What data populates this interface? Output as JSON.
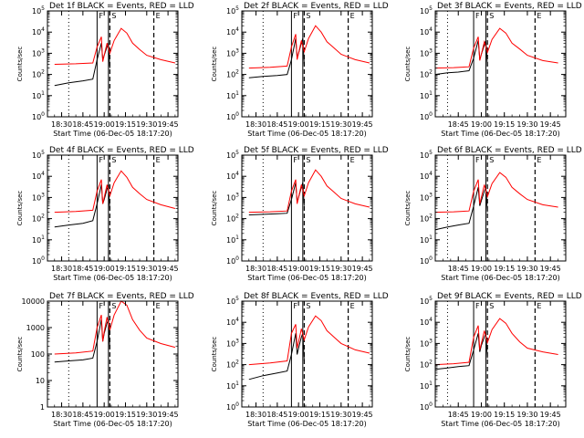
{
  "colors": {
    "events": "#000000",
    "lld": "#ff0000",
    "axis": "#000000",
    "background": "#ffffff"
  },
  "common": {
    "ylabel": "Counts/sec",
    "xlabel": "Start Time (06-Dec-05 18:17:20)",
    "xticks": [
      "18:30",
      "18:45",
      "19:00",
      "19:15",
      "19:30",
      "19:45"
    ],
    "xticks_start_1845": [
      "18:45",
      "19:00",
      "19:15",
      "19:30",
      "19:45"
    ],
    "marker_labels": [
      "F",
      "S",
      "E"
    ]
  },
  "chart_data": [
    {
      "type": "line",
      "title": "Det 1f BLACK = Events, RED = LLD",
      "xlim": [
        "18:20",
        "19:52"
      ],
      "xticks": [
        "18:30",
        "18:45",
        "19:00",
        "19:15",
        "19:30",
        "19:45"
      ],
      "yscale": "log",
      "ylim": [
        1,
        100000
      ],
      "yticks": [
        "10^0",
        "10^1",
        "10^2",
        "10^3",
        "10^4",
        "10^5"
      ],
      "dotted_line": "18:35",
      "solid_lines": [
        "18:55",
        "19:03"
      ],
      "dashed_lines": [
        "19:04",
        "19:35"
      ],
      "series": [
        {
          "name": "BLACK = Events",
          "color": "#000000",
          "x": [
            "18:25",
            "18:35",
            "18:45",
            "18:52",
            "18:55",
            "18:58",
            "18:59",
            "19:00",
            "19:02",
            "19:03",
            "19:04"
          ],
          "y": [
            30,
            40,
            50,
            60,
            500,
            3000,
            500,
            800,
            2000,
            3000,
            200
          ]
        },
        {
          "name": "RED = LLD",
          "color": "#ff0000",
          "x": [
            "18:25",
            "18:40",
            "18:52",
            "18:55",
            "18:58",
            "18:59",
            "19:00",
            "19:02",
            "19:04",
            "19:07",
            "19:12",
            "19:16",
            "19:20",
            "19:25",
            "19:30",
            "19:40",
            "19:50"
          ],
          "y": [
            300,
            320,
            350,
            2000,
            6000,
            400,
            800,
            3000,
            1000,
            4000,
            15000,
            9000,
            3000,
            1500,
            800,
            500,
            350
          ]
        }
      ]
    },
    {
      "type": "line",
      "title": "Det 2f BLACK = Events, RED = LLD",
      "xlim": [
        "18:20",
        "19:52"
      ],
      "xticks": [
        "18:30",
        "18:45",
        "19:00",
        "19:15",
        "19:30",
        "19:45"
      ],
      "yscale": "log",
      "ylim": [
        1,
        100000
      ],
      "yticks": [
        "10^0",
        "10^1",
        "10^2",
        "10^3",
        "10^4",
        "10^5"
      ],
      "dotted_line": "18:35",
      "solid_lines": [
        "18:55",
        "19:03"
      ],
      "dashed_lines": [
        "19:04",
        "19:35"
      ],
      "series": [
        {
          "name": "BLACK = Events",
          "color": "#000000",
          "x": [
            "18:25",
            "18:35",
            "18:45",
            "18:52",
            "18:55",
            "18:58",
            "18:59",
            "19:00",
            "19:02",
            "19:03",
            "19:04"
          ],
          "y": [
            70,
            80,
            90,
            100,
            500,
            5000,
            600,
            1000,
            3000,
            5000,
            300
          ]
        },
        {
          "name": "RED = LLD",
          "color": "#ff0000",
          "x": [
            "18:25",
            "18:40",
            "18:52",
            "18:55",
            "18:58",
            "18:59",
            "19:00",
            "19:02",
            "19:04",
            "19:07",
            "19:12",
            "19:16",
            "19:20",
            "19:25",
            "19:30",
            "19:40",
            "19:50"
          ],
          "y": [
            200,
            220,
            250,
            2000,
            8000,
            500,
            1000,
            4000,
            1200,
            5000,
            20000,
            10000,
            3500,
            1800,
            900,
            500,
            350
          ]
        }
      ]
    },
    {
      "type": "line",
      "title": "Det 3f BLACK = Events, RED = LLD",
      "xlim": [
        "18:30",
        "19:55"
      ],
      "xticks": [
        "18:45",
        "19:00",
        "19:15",
        "19:30",
        "19:45"
      ],
      "yscale": "log",
      "ylim": [
        1,
        100000
      ],
      "yticks": [
        "10^0",
        "10^1",
        "10^2",
        "10^3",
        "10^4",
        "10^5"
      ],
      "dotted_line": "18:38",
      "solid_lines": [
        "18:55",
        "19:03"
      ],
      "dashed_lines": [
        "19:04",
        "19:35"
      ],
      "series": [
        {
          "name": "BLACK = Events",
          "color": "#000000",
          "x": [
            "18:30",
            "18:38",
            "18:45",
            "18:52",
            "18:55",
            "18:58",
            "18:59",
            "19:00",
            "19:02",
            "19:03",
            "19:04"
          ],
          "y": [
            100,
            120,
            130,
            150,
            600,
            4000,
            500,
            900,
            2500,
            4000,
            250
          ]
        },
        {
          "name": "RED = LLD",
          "color": "#ff0000",
          "x": [
            "18:30",
            "18:42",
            "18:52",
            "18:55",
            "18:58",
            "18:59",
            "19:00",
            "19:02",
            "19:04",
            "19:07",
            "19:12",
            "19:16",
            "19:20",
            "19:25",
            "19:30",
            "19:40",
            "19:50"
          ],
          "y": [
            200,
            210,
            230,
            1800,
            6000,
            450,
            900,
            3500,
            1100,
            4500,
            15000,
            9000,
            3000,
            1600,
            800,
            450,
            350
          ]
        }
      ]
    },
    {
      "type": "line",
      "title": "Det 4f BLACK = Events, RED = LLD",
      "xlim": [
        "18:20",
        "19:52"
      ],
      "xticks": [
        "18:30",
        "18:45",
        "19:00",
        "19:15",
        "19:30",
        "19:45"
      ],
      "yscale": "log",
      "ylim": [
        1,
        100000
      ],
      "yticks": [
        "10^0",
        "10^1",
        "10^2",
        "10^3",
        "10^4",
        "10^5"
      ],
      "dotted_line": "18:35",
      "solid_lines": [
        "18:55",
        "19:03"
      ],
      "dashed_lines": [
        "19:04",
        "19:35"
      ],
      "series": [
        {
          "name": "BLACK = Events",
          "color": "#000000",
          "x": [
            "18:25",
            "18:35",
            "18:45",
            "18:52",
            "18:55",
            "18:58",
            "18:59",
            "19:00",
            "19:02",
            "19:03",
            "19:04"
          ],
          "y": [
            40,
            50,
            60,
            80,
            500,
            4000,
            500,
            800,
            2500,
            4000,
            250
          ]
        },
        {
          "name": "RED = LLD",
          "color": "#ff0000",
          "x": [
            "18:25",
            "18:40",
            "18:52",
            "18:55",
            "18:58",
            "18:59",
            "19:00",
            "19:02",
            "19:04",
            "19:07",
            "19:12",
            "19:16",
            "19:20",
            "19:25",
            "19:30",
            "19:40",
            "19:50"
          ],
          "y": [
            200,
            220,
            250,
            2000,
            7000,
            500,
            1000,
            4000,
            1200,
            5000,
            18000,
            9000,
            3000,
            1500,
            800,
            450,
            300
          ]
        }
      ]
    },
    {
      "type": "line",
      "title": "Det 5f BLACK = Events, RED = LLD",
      "xlim": [
        "18:20",
        "19:52"
      ],
      "xticks": [
        "18:30",
        "18:45",
        "19:00",
        "19:15",
        "19:30",
        "19:45"
      ],
      "yscale": "log",
      "ylim": [
        1,
        100000
      ],
      "yticks": [
        "10^0",
        "10^1",
        "10^2",
        "10^3",
        "10^4",
        "10^5"
      ],
      "dotted_line": "18:35",
      "solid_lines": [
        "18:55",
        "19:03"
      ],
      "dashed_lines": [
        "19:04",
        "19:35"
      ],
      "series": [
        {
          "name": "BLACK = Events",
          "color": "#000000",
          "x": [
            "18:25",
            "18:35",
            "18:45",
            "18:52",
            "18:55",
            "18:58",
            "18:59",
            "19:00",
            "19:02",
            "19:03",
            "19:04"
          ],
          "y": [
            150,
            160,
            170,
            180,
            800,
            5000,
            600,
            1000,
            3000,
            5000,
            400
          ]
        },
        {
          "name": "RED = LLD",
          "color": "#ff0000",
          "x": [
            "18:25",
            "18:40",
            "18:52",
            "18:55",
            "18:58",
            "18:59",
            "19:00",
            "19:02",
            "19:04",
            "19:07",
            "19:12",
            "19:16",
            "19:20",
            "19:25",
            "19:30",
            "19:40",
            "19:50"
          ],
          "y": [
            200,
            210,
            230,
            2000,
            7000,
            500,
            1000,
            4000,
            1200,
            5000,
            20000,
            10000,
            3500,
            1800,
            900,
            500,
            350
          ]
        }
      ]
    },
    {
      "type": "line",
      "title": "Det 6f BLACK = Events, RED = LLD",
      "xlim": [
        "18:30",
        "19:55"
      ],
      "xticks": [
        "18:45",
        "19:00",
        "19:15",
        "19:30",
        "19:45"
      ],
      "yscale": "log",
      "ylim": [
        1,
        100000
      ],
      "yticks": [
        "10^0",
        "10^1",
        "10^2",
        "10^3",
        "10^4",
        "10^5"
      ],
      "dotted_line": "18:38",
      "solid_lines": [
        "18:55",
        "19:03"
      ],
      "dashed_lines": [
        "19:04",
        "19:35"
      ],
      "series": [
        {
          "name": "BLACK = Events",
          "color": "#000000",
          "x": [
            "18:30",
            "18:38",
            "18:45",
            "18:52",
            "18:55",
            "18:58",
            "18:59",
            "19:00",
            "19:02",
            "19:03",
            "19:04"
          ],
          "y": [
            30,
            40,
            50,
            60,
            400,
            3000,
            400,
            700,
            2000,
            3000,
            200
          ]
        },
        {
          "name": "RED = LLD",
          "color": "#ff0000",
          "x": [
            "18:30",
            "18:42",
            "18:52",
            "18:55",
            "18:58",
            "18:59",
            "19:00",
            "19:02",
            "19:04",
            "19:07",
            "19:12",
            "19:16",
            "19:20",
            "19:25",
            "19:30",
            "19:40",
            "19:50"
          ],
          "y": [
            200,
            210,
            230,
            2000,
            7000,
            500,
            1000,
            4000,
            1100,
            4500,
            15000,
            9000,
            3000,
            1500,
            800,
            450,
            350
          ]
        }
      ]
    },
    {
      "type": "line",
      "title": "Det 7f BLACK = Events, RED = LLD",
      "xlim": [
        "18:20",
        "19:52"
      ],
      "xticks": [
        "18:30",
        "18:45",
        "19:00",
        "19:15",
        "19:30",
        "19:45"
      ],
      "yscale": "log",
      "ylim": [
        1,
        10000
      ],
      "yticks": [
        "1",
        "10",
        "100",
        "1000",
        "10000"
      ],
      "dotted_line": "18:35",
      "solid_lines": [
        "18:55",
        "19:03"
      ],
      "dashed_lines": [
        "19:04",
        "19:35"
      ],
      "series": [
        {
          "name": "BLACK = Events",
          "color": "#000000",
          "x": [
            "18:25",
            "18:35",
            "18:45",
            "18:52",
            "18:55",
            "18:58",
            "18:59",
            "19:00",
            "19:02",
            "19:03",
            "19:04"
          ],
          "y": [
            50,
            55,
            60,
            70,
            300,
            2000,
            300,
            600,
            1500,
            2000,
            150
          ]
        },
        {
          "name": "RED = LLD",
          "color": "#ff0000",
          "x": [
            "18:25",
            "18:40",
            "18:52",
            "18:55",
            "18:58",
            "18:59",
            "19:00",
            "19:02",
            "19:04",
            "19:07",
            "19:12",
            "19:16",
            "19:20",
            "19:25",
            "19:30",
            "19:40",
            "19:50"
          ],
          "y": [
            100,
            110,
            130,
            1000,
            3000,
            300,
            700,
            2500,
            800,
            3000,
            10000,
            7000,
            2000,
            800,
            400,
            250,
            180
          ]
        }
      ]
    },
    {
      "type": "line",
      "title": "Det 8f BLACK = Events, RED = LLD",
      "xlim": [
        "18:20",
        "19:52"
      ],
      "xticks": [
        "18:30",
        "18:45",
        "19:00",
        "19:15",
        "19:30",
        "19:45"
      ],
      "yscale": "log",
      "ylim": [
        1,
        100000
      ],
      "yticks": [
        "10^0",
        "10^1",
        "10^2",
        "10^3",
        "10^4",
        "10^5"
      ],
      "dotted_line": "18:35",
      "solid_lines": [
        "18:55",
        "19:03"
      ],
      "dashed_lines": [
        "19:04",
        "19:35"
      ],
      "series": [
        {
          "name": "BLACK = Events",
          "color": "#000000",
          "x": [
            "18:25",
            "18:35",
            "18:45",
            "18:52",
            "18:55",
            "18:58",
            "18:59",
            "19:00",
            "19:02",
            "19:03",
            "19:04"
          ],
          "y": [
            20,
            30,
            40,
            50,
            300,
            3000,
            300,
            600,
            2000,
            3000,
            150
          ]
        },
        {
          "name": "RED = LLD",
          "color": "#ff0000",
          "x": [
            "18:25",
            "18:40",
            "18:52",
            "18:55",
            "18:58",
            "18:59",
            "19:00",
            "19:02",
            "19:04",
            "19:07",
            "19:12",
            "19:16",
            "19:20",
            "19:25",
            "19:30",
            "19:40",
            "19:50"
          ],
          "y": [
            100,
            120,
            150,
            3000,
            8000,
            600,
            1200,
            5000,
            1500,
            6000,
            20000,
            12000,
            4000,
            2000,
            1000,
            500,
            350
          ]
        }
      ]
    },
    {
      "type": "line",
      "title": "Det 9f BLACK = Events, RED = LLD",
      "xlim": [
        "18:30",
        "19:55"
      ],
      "xticks": [
        "18:45",
        "19:00",
        "19:15",
        "19:30",
        "19:45"
      ],
      "yscale": "log",
      "ylim": [
        1,
        100000
      ],
      "yticks": [
        "10^0",
        "10^1",
        "10^2",
        "10^3",
        "10^4",
        "10^5"
      ],
      "dotted_line": "18:38",
      "solid_lines": [
        "18:55",
        "19:03"
      ],
      "dashed_lines": [
        "19:04",
        "19:35"
      ],
      "series": [
        {
          "name": "BLACK = Events",
          "color": "#000000",
          "x": [
            "18:30",
            "18:38",
            "18:45",
            "18:52",
            "18:55",
            "18:58",
            "18:59",
            "19:00",
            "19:02",
            "19:03",
            "19:04"
          ],
          "y": [
            60,
            70,
            80,
            90,
            500,
            3000,
            400,
            800,
            2000,
            3000,
            200
          ]
        },
        {
          "name": "RED = LLD",
          "color": "#ff0000",
          "x": [
            "18:30",
            "18:42",
            "18:52",
            "18:55",
            "18:58",
            "18:59",
            "19:00",
            "19:02",
            "19:04",
            "19:07",
            "19:12",
            "19:16",
            "19:20",
            "19:25",
            "19:30",
            "19:40",
            "19:50"
          ],
          "y": [
            100,
            110,
            130,
            2000,
            7000,
            500,
            1000,
            4000,
            1100,
            4500,
            15000,
            9000,
            3000,
            1200,
            600,
            400,
            300
          ]
        }
      ]
    }
  ]
}
